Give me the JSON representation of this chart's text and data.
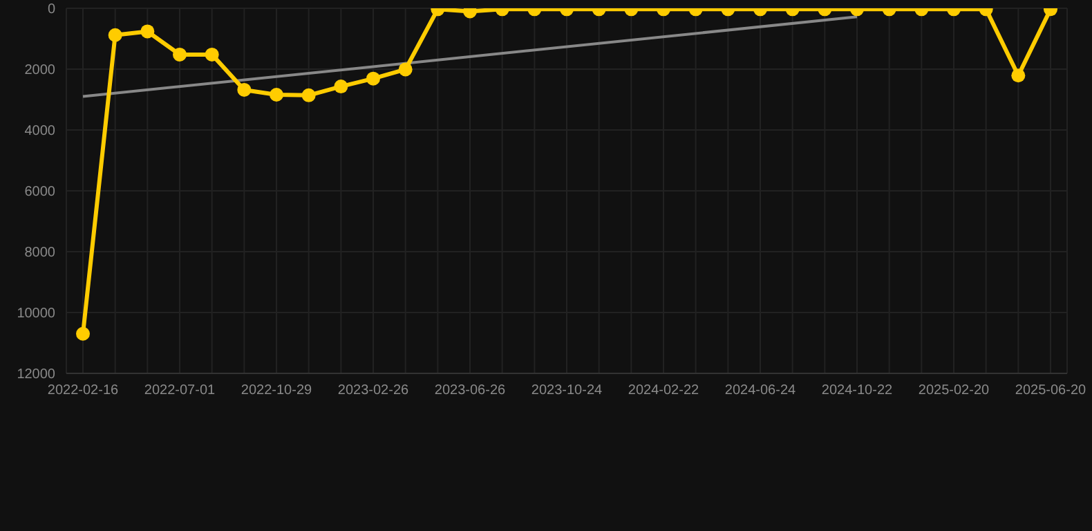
{
  "chart_data": {
    "type": "line",
    "categories": [
      "2022-02-16",
      null,
      null,
      "2022-07-01",
      null,
      null,
      "2022-10-29",
      null,
      null,
      "2023-02-26",
      null,
      null,
      "2023-06-26",
      null,
      null,
      "2023-10-24",
      null,
      null,
      "2024-02-22",
      null,
      null,
      "2024-06-24",
      null,
      null,
      "2024-10-22",
      null,
      null,
      "2025-02-20",
      null,
      null,
      "2025-06-20"
    ],
    "series": [
      {
        "color": "#ffcc00",
        "marker": "circle",
        "values": [
          10700,
          880,
          760,
          1520,
          1520,
          2680,
          2840,
          2860,
          2570,
          2310,
          2010,
          30,
          100,
          30,
          30,
          30,
          30,
          30,
          30,
          30,
          30,
          30,
          30,
          30,
          30,
          30,
          30,
          30,
          30,
          2210,
          30
        ]
      },
      {
        "type": "line",
        "color": "#888888",
        "marker": "none",
        "values": [
          2900,
          null,
          null,
          null,
          null,
          null,
          null,
          null,
          null,
          null,
          null,
          null,
          null,
          null,
          null,
          null,
          null,
          null,
          null,
          null,
          null,
          null,
          null,
          null,
          280,
          null,
          null,
          null,
          null,
          null,
          null
        ]
      }
    ],
    "ylim": [
      12000,
      0
    ],
    "yticks": [
      0,
      2000,
      4000,
      6000,
      8000,
      10000,
      12000
    ],
    "grid": true
  }
}
